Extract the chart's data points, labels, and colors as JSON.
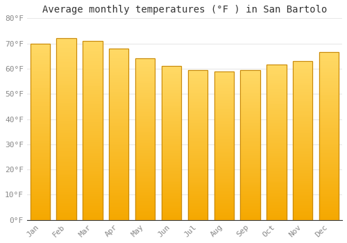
{
  "title": "Average monthly temperatures (°F ) in San Bartolo",
  "months": [
    "Jan",
    "Feb",
    "Mar",
    "Apr",
    "May",
    "Jun",
    "Jul",
    "Aug",
    "Sep",
    "Oct",
    "Nov",
    "Dec"
  ],
  "values": [
    70.0,
    72.0,
    71.0,
    68.0,
    64.0,
    61.0,
    59.5,
    59.0,
    59.5,
    61.5,
    63.0,
    66.5
  ],
  "bar_color_top": "#FFD966",
  "bar_color_bottom": "#F5A800",
  "bar_edge_color": "#C8890A",
  "ylim": [
    0,
    80
  ],
  "yticks": [
    0,
    10,
    20,
    30,
    40,
    50,
    60,
    70,
    80
  ],
  "ytick_labels": [
    "0°F",
    "10°F",
    "20°F",
    "30°F",
    "40°F",
    "50°F",
    "60°F",
    "70°F",
    "80°F"
  ],
  "background_color": "#ffffff",
  "plot_bg_color": "#ffffff",
  "grid_color": "#e8e8e8",
  "title_fontsize": 10,
  "tick_fontsize": 8,
  "bar_width": 0.75
}
